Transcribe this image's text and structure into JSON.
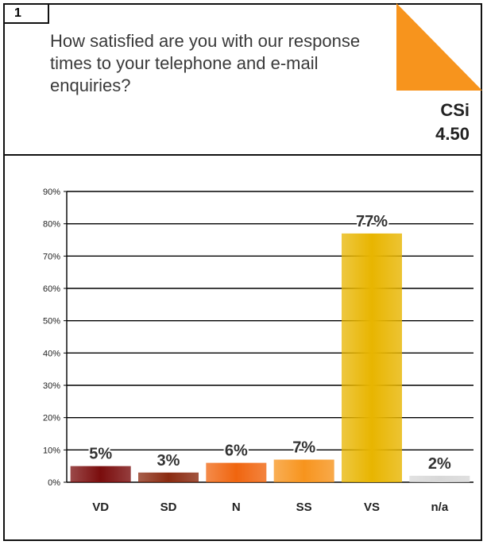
{
  "question": {
    "number": "1",
    "text": "How satisfied are you with our response times to your telephone and e-mail enquiries?"
  },
  "csi": {
    "label": "CSi",
    "value": "4.50"
  },
  "colors": {
    "accent": "#f7941d"
  },
  "chart_data": {
    "type": "bar",
    "categories": [
      "VD",
      "SD",
      "N",
      "SS",
      "VS",
      "n/a"
    ],
    "values": [
      5,
      3,
      6,
      7,
      77,
      2
    ],
    "value_labels": [
      "5%",
      "3%",
      "6%",
      "7%",
      "77%",
      "2%"
    ],
    "ylim": [
      0,
      90
    ],
    "yticks": [
      "0%",
      "10%",
      "20%",
      "30%",
      "40%",
      "50%",
      "60%",
      "70%",
      "80%",
      "90%"
    ],
    "bar_colors": [
      "#7a0d0d",
      "#8a2a10",
      "#f0650f",
      "#f7941d",
      "#e8b500",
      "#d8d8d8"
    ],
    "grid": true
  }
}
